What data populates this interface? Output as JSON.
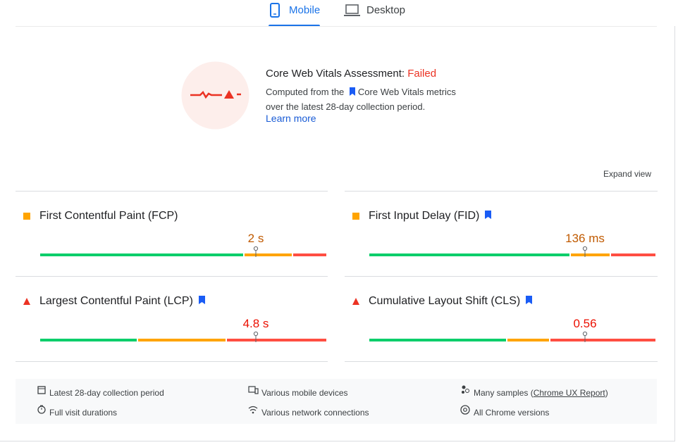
{
  "tabs": [
    {
      "label": "Mobile",
      "active": true
    },
    {
      "label": "Desktop",
      "active": false
    }
  ],
  "assessment": {
    "title": "Core Web Vitals Assessment:",
    "status": "Failed",
    "description_pre": "Computed from the",
    "description_link": "Core Web Vitals metrics",
    "description_post": "over the latest 28-day collection period.",
    "learn_more": "Learn more"
  },
  "expand_view": "Expand view",
  "metrics": [
    {
      "name": "First Contentful Paint (FCP)",
      "value": "2 s",
      "rating": "average",
      "core": false,
      "distribution": [
        71,
        17,
        12
      ],
      "marker": 75
    },
    {
      "name": "First Input Delay (FID)",
      "value": "136 ms",
      "rating": "average",
      "core": true,
      "distribution": [
        70,
        14,
        16
      ],
      "marker": 75
    },
    {
      "name": "Largest Contentful Paint (LCP)",
      "value": "4.8 s",
      "rating": "poor",
      "core": true,
      "distribution": [
        34,
        31,
        35
      ],
      "marker": 75
    },
    {
      "name": "Cumulative Layout Shift (CLS)",
      "value": "0.56",
      "rating": "poor",
      "core": true,
      "distribution": [
        48,
        15,
        37
      ],
      "marker": 75
    }
  ],
  "footer": {
    "period": "Latest 28-day collection period",
    "devices": "Various mobile devices",
    "samples_pre": "Many samples (",
    "samples_link": "Chrome UX Report",
    "samples_post": ")",
    "durations": "Full visit durations",
    "network": "Various network connections",
    "versions": "All Chrome versions"
  }
}
